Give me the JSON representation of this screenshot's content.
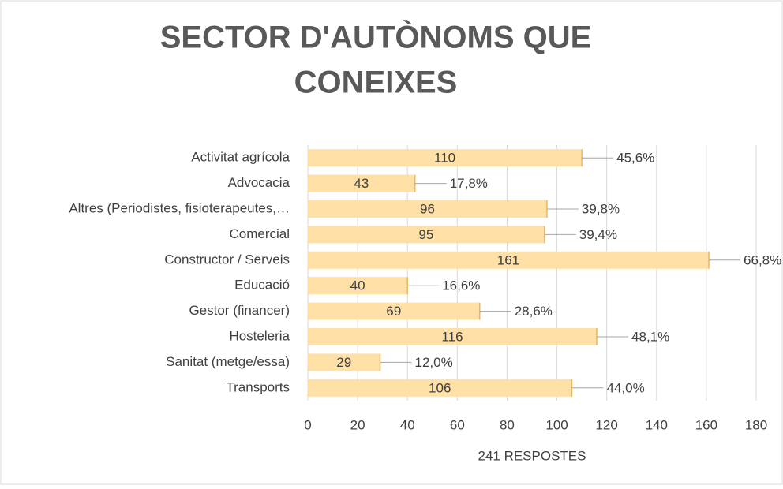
{
  "chart_data": {
    "type": "bar",
    "orientation": "horizontal",
    "title": "SECTOR D'AUTÒNOMS QUE",
    "title_line2": "CONEIXES",
    "x_label": "241 RESPOSTES",
    "categories": [
      "Activitat agrícola",
      "Advocacia",
      "Altres (Periodistes, fisioterapeutes,…",
      "Comercial",
      "Constructor / Serveis",
      "Educació",
      "Gestor (financer)",
      "Hosteleria",
      "Sanitat (metge/essa)",
      "Transports"
    ],
    "values": [
      110,
      43,
      96,
      95,
      161,
      40,
      69,
      116,
      29,
      106
    ],
    "percent_labels": [
      "45,6%",
      "17,8%",
      "39,8%",
      "39,4%",
      "66,8%",
      "16,6%",
      "28,6%",
      "48,1%",
      "12,0%",
      "44,0%"
    ],
    "color": "#ffe0a6",
    "xlim": [
      0,
      180
    ],
    "xticks": [
      0,
      20,
      40,
      60,
      80,
      100,
      120,
      140,
      160,
      180
    ],
    "grid": true
  }
}
